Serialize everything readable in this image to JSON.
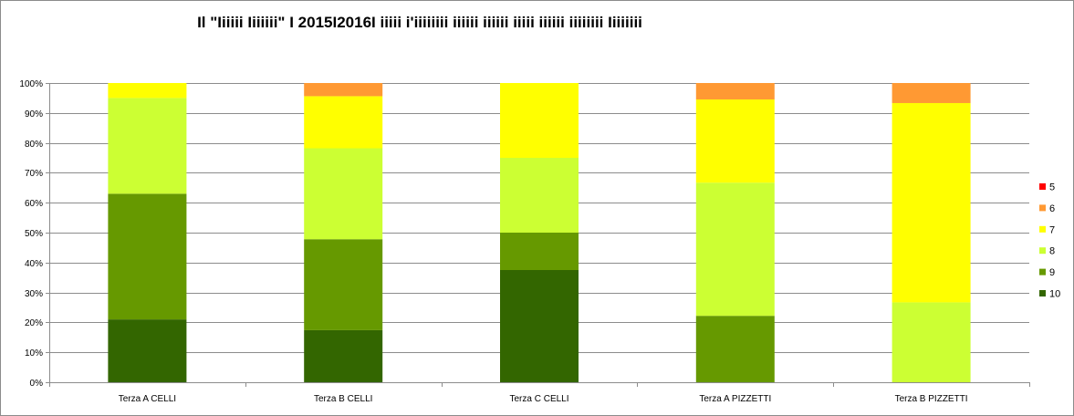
{
  "chart_data": {
    "type": "bar",
    "stacked": "percent",
    "title": "Il \"Iiiiii Iiiiiii\" I 2015I2016I iiiii i'iiiiiiii iiiiii iiiiii iiiii iiiiii iiiiiiii Iiiiiiii",
    "xlabel": "",
    "ylabel": "",
    "ylim": [
      0,
      100
    ],
    "y_ticks": [
      "0%",
      "10%",
      "20%",
      "30%",
      "40%",
      "50%",
      "60%",
      "70%",
      "80%",
      "90%",
      "100%"
    ],
    "grid": true,
    "legend_position": "right",
    "categories": [
      "Terza A CELLI",
      "Terza B CELLI",
      "Terza C CELLI",
      "Terza A PIZZETTI",
      "Terza B PIZZETTI"
    ],
    "series": [
      {
        "name": "10",
        "color": "#336600",
        "values": [
          21,
          17.4,
          37.5,
          0,
          0
        ]
      },
      {
        "name": "9",
        "color": "#669900",
        "values": [
          42,
          30.4,
          12.5,
          22.2,
          0
        ]
      },
      {
        "name": "8",
        "color": "#ccff33",
        "values": [
          32,
          30.4,
          25,
          44.5,
          26.7
        ]
      },
      {
        "name": "7",
        "color": "#ffff00",
        "values": [
          5,
          17.4,
          25,
          27.8,
          66.6
        ]
      },
      {
        "name": "6",
        "color": "#ff9933",
        "values": [
          0,
          4.4,
          0,
          5.5,
          6.7
        ]
      },
      {
        "name": "5",
        "color": "#ff0000",
        "values": [
          0,
          0,
          0,
          0,
          0
        ]
      }
    ]
  }
}
